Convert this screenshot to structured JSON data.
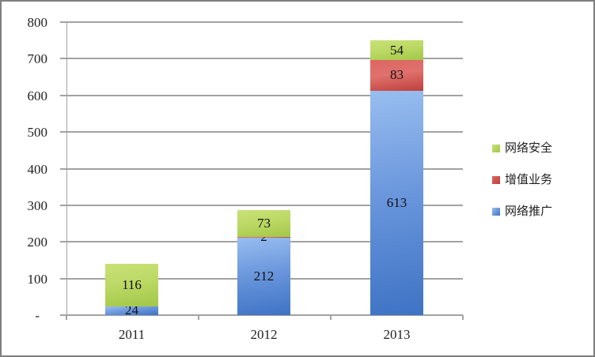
{
  "chart_data": {
    "type": "bar",
    "stacked": true,
    "title": "",
    "categories": [
      "2011",
      "2012",
      "2013"
    ],
    "series": [
      {
        "name": "网络推广",
        "color": "blue",
        "values": [
          24,
          212,
          613
        ]
      },
      {
        "name": "增值业务",
        "color": "red",
        "values": [
          0,
          2,
          83
        ]
      },
      {
        "name": "网络安全",
        "color": "green",
        "values": [
          116,
          73,
          54
        ]
      }
    ],
    "data_labels_shown": true,
    "y_axis": {
      "min": 0,
      "max": 800,
      "step": 100,
      "zero_label": "-",
      "tick_labels": [
        "-",
        "100",
        "200",
        "300",
        "400",
        "500",
        "600",
        "700",
        "800"
      ]
    },
    "x_axis_labels": [
      "2011",
      "2012",
      "2013"
    ],
    "legend_position": "right",
    "legend": [
      {
        "label": "网络安全",
        "color": "green"
      },
      {
        "label": "增值业务",
        "color": "red"
      },
      {
        "label": "网络推广",
        "color": "blue"
      }
    ],
    "grid": true
  },
  "palette": {
    "green": {
      "light": "#C9E178",
      "mid": "#BCD965",
      "dark": "#A2C748"
    },
    "red": {
      "light": "#DC6561",
      "mid": "#E0716D",
      "dark": "#BE403C"
    },
    "blue": {
      "light": "#98BEF0",
      "mid": "#6B97DD",
      "dark": "#3E73C4"
    }
  },
  "frame": {
    "border_color": "#7F7F7F",
    "background": "#FFFFFF",
    "gridline_color": "#A2A2A2",
    "text_color": "#1F1F1F"
  }
}
